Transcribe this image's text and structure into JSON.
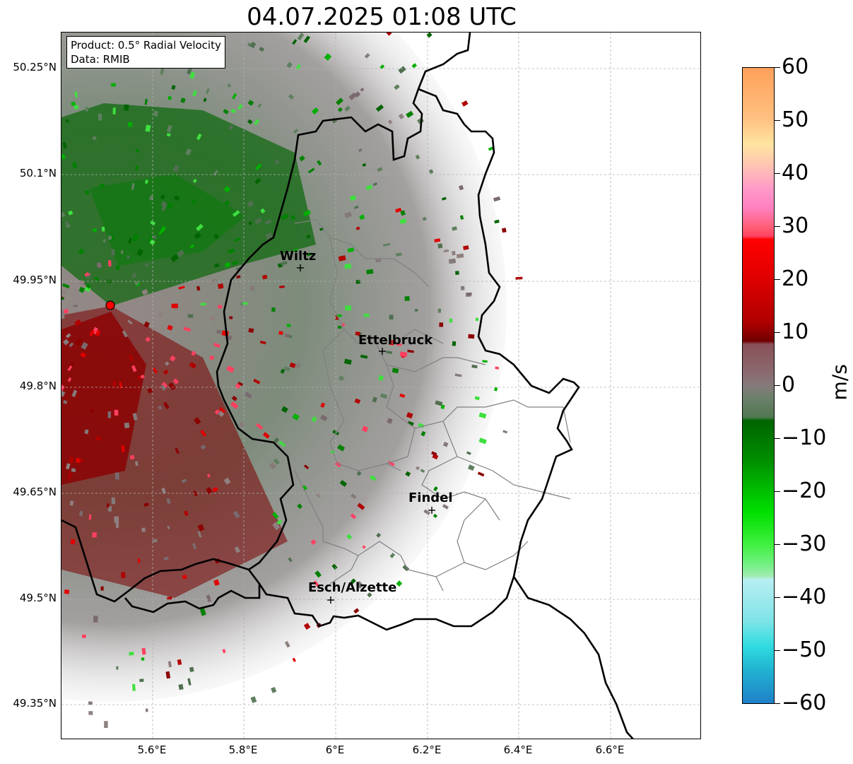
{
  "title": "04.07.2025 01:08 UTC",
  "info": {
    "product": "Product: 0.5° Radial Velocity",
    "data": "Data: RMIB"
  },
  "axes": {
    "lat_ticks": [
      "50.25°N",
      "50.1°N",
      "49.95°N",
      "49.8°N",
      "49.65°N",
      "49.5°N",
      "49.35°N"
    ],
    "lon_ticks": [
      "5.6°E",
      "5.8°E",
      "6°E",
      "6.2°E",
      "6.4°E",
      "6.6°E"
    ]
  },
  "colorbar": {
    "unit": "m/s",
    "ticks": [
      "60",
      "50",
      "40",
      "30",
      "20",
      "10",
      "0",
      "−10",
      "−20",
      "−30",
      "−40",
      "−50",
      "−60"
    ],
    "min": -60,
    "max": 60,
    "colors": {
      "orange": "#ffa05a",
      "peach": "#ffd9a0",
      "pink": "#ff8fc8",
      "rose": "#ff5070",
      "red": "#ff0000",
      "darkred": "#7a0000",
      "mauve": "#8a5a64",
      "gray": "#857a7a",
      "graygreen": "#5f7f5f",
      "darkgreen": "#006400",
      "green": "#00c800",
      "lightgreen": "#50ff50",
      "mint": "#90eea0",
      "lightcyan": "#b0ecf0",
      "cyan": "#28d8e0",
      "blue": "#2080c8"
    }
  },
  "cities": [
    {
      "name": "Wiltz"
    },
    {
      "name": "Ettelbruck"
    },
    {
      "name": "Findel"
    },
    {
      "name": "Esch/Alzette"
    }
  ],
  "radar_site": {
    "color": "#ff0000"
  }
}
